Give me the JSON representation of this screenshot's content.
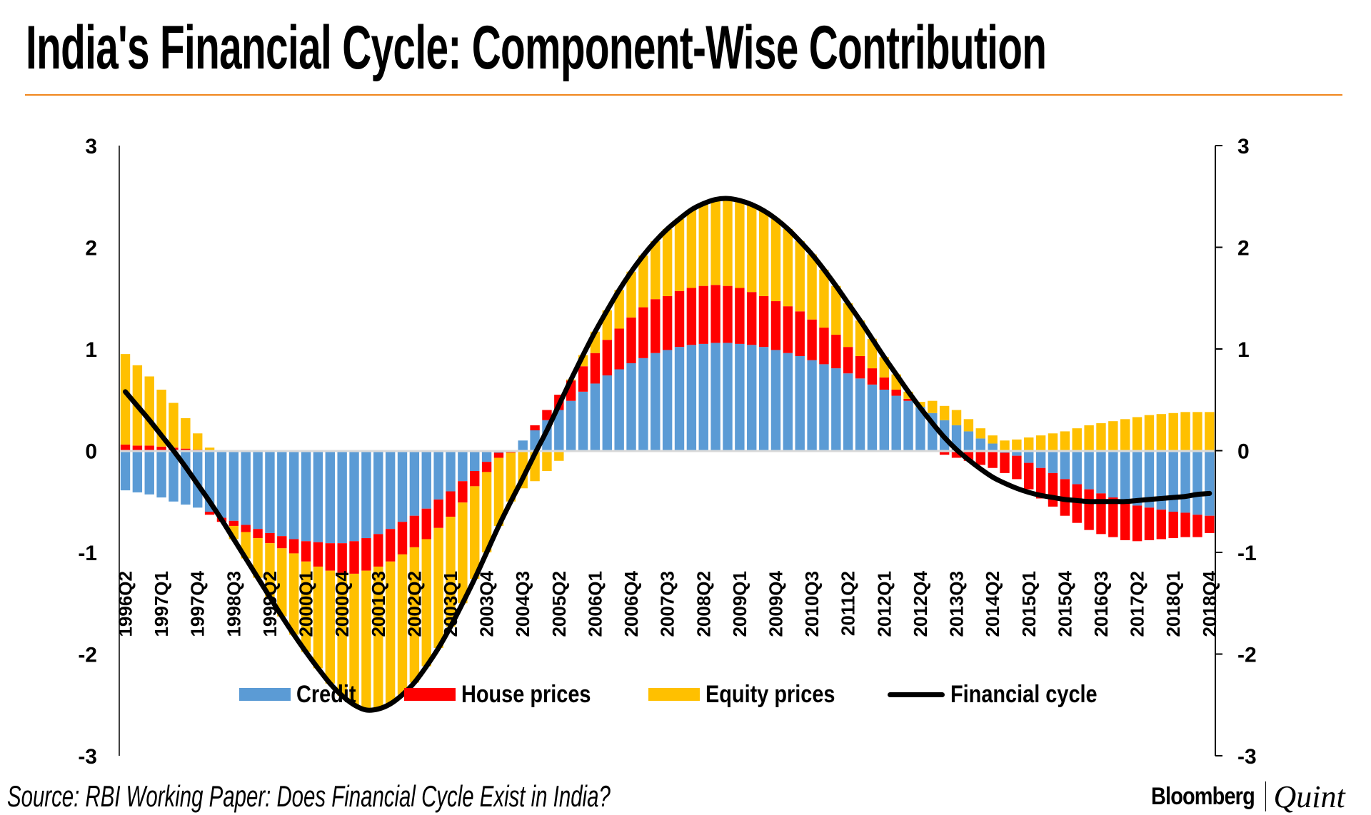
{
  "header": {
    "title": "India's Financial Cycle: Component-Wise Contribution"
  },
  "footer": {
    "source": "Source: RBI Working Paper: Does Financial Cycle Exist in India?",
    "logo_left": "Bloomberg",
    "logo_right": "Quint"
  },
  "chart_data": {
    "type": "bar",
    "stacked": true,
    "title": "India's Financial Cycle: Component-Wise Contribution",
    "xlabel": "",
    "ylabel": "",
    "ylim": [
      -3,
      3
    ],
    "y_ticks": [
      "3",
      "2",
      "1",
      "0",
      "-1",
      "-2",
      "-3"
    ],
    "y2_ticks": [
      "3",
      "2",
      "1",
      "0",
      "-1",
      "-2",
      "-3"
    ],
    "grid": false,
    "legend_position": "bottom",
    "x_tick_every": 3,
    "x_tick_labels": [
      "1996Q2",
      "1997Q1",
      "1997Q4",
      "1998Q3",
      "1999Q2",
      "2000Q1",
      "2000Q4",
      "2001Q3",
      "2002Q2",
      "2003Q1",
      "2003Q4",
      "2004Q3",
      "2005Q2",
      "2006Q1",
      "2006Q4",
      "2007Q3",
      "2008Q2",
      "2009Q1",
      "2009Q4",
      "2010Q3",
      "2011Q2",
      "2012Q1",
      "2012Q4",
      "2013Q3",
      "2014Q2",
      "2015Q1",
      "2015Q4",
      "2016Q3",
      "2017Q2",
      "2018Q1",
      "2018Q4"
    ],
    "series": [
      {
        "name": "Credit",
        "type": "bar",
        "color": "#5b9bd5",
        "values": [
          -0.39,
          -0.41,
          -0.43,
          -0.46,
          -0.5,
          -0.53,
          -0.56,
          -0.6,
          -0.66,
          -0.69,
          -0.73,
          -0.77,
          -0.81,
          -0.84,
          -0.87,
          -0.89,
          -0.9,
          -0.91,
          -0.91,
          -0.89,
          -0.86,
          -0.82,
          -0.77,
          -0.7,
          -0.64,
          -0.57,
          -0.48,
          -0.4,
          -0.3,
          -0.2,
          -0.11,
          -0.02,
          0.0,
          0.1,
          0.2,
          0.3,
          0.4,
          0.49,
          0.58,
          0.66,
          0.74,
          0.8,
          0.86,
          0.91,
          0.96,
          0.99,
          1.02,
          1.04,
          1.05,
          1.06,
          1.06,
          1.05,
          1.04,
          1.02,
          0.99,
          0.96,
          0.93,
          0.89,
          0.85,
          0.81,
          0.76,
          0.71,
          0.65,
          0.6,
          0.54,
          0.49,
          0.43,
          0.37,
          0.3,
          0.25,
          0.19,
          0.12,
          0.07,
          -0.02,
          -0.05,
          -0.12,
          -0.17,
          -0.22,
          -0.28,
          -0.33,
          -0.38,
          -0.42,
          -0.46,
          -0.51,
          -0.54,
          -0.56,
          -0.58,
          -0.6,
          -0.61,
          -0.63,
          -0.64
        ]
      },
      {
        "name": "House prices",
        "type": "bar",
        "color": "#ff0000",
        "values": [
          0.06,
          0.05,
          0.05,
          0.04,
          0.03,
          0.02,
          0.01,
          -0.03,
          -0.04,
          -0.05,
          -0.07,
          -0.09,
          -0.1,
          -0.12,
          -0.14,
          -0.2,
          -0.24,
          -0.27,
          -0.29,
          -0.32,
          -0.32,
          -0.32,
          -0.32,
          -0.32,
          -0.31,
          -0.3,
          -0.28,
          -0.25,
          -0.21,
          -0.15,
          -0.1,
          -0.05,
          -0.02,
          0.0,
          0.05,
          0.1,
          0.15,
          0.2,
          0.25,
          0.3,
          0.35,
          0.4,
          0.45,
          0.5,
          0.53,
          0.53,
          0.55,
          0.56,
          0.57,
          0.57,
          0.56,
          0.55,
          0.52,
          0.5,
          0.48,
          0.46,
          0.44,
          0.4,
          0.36,
          0.33,
          0.26,
          0.22,
          0.16,
          0.12,
          0.06,
          0.02,
          0.0,
          -0.01,
          -0.04,
          -0.07,
          -0.1,
          -0.14,
          -0.17,
          -0.2,
          -0.23,
          -0.26,
          -0.3,
          -0.33,
          -0.36,
          -0.38,
          -0.4,
          -0.4,
          -0.39,
          -0.37,
          -0.35,
          -0.32,
          -0.29,
          -0.26,
          -0.24,
          -0.22,
          -0.17
        ]
      },
      {
        "name": "Equity prices",
        "type": "bar",
        "color": "#ffc000",
        "values": [
          0.89,
          0.79,
          0.68,
          0.56,
          0.44,
          0.3,
          0.16,
          0.03,
          0.0,
          -0.13,
          -0.26,
          -0.39,
          -0.53,
          -0.67,
          -0.8,
          -0.89,
          -1.0,
          -1.11,
          -1.21,
          -1.29,
          -1.37,
          -1.4,
          -1.4,
          -1.38,
          -1.33,
          -1.25,
          -1.18,
          -1.08,
          -0.99,
          -0.91,
          -0.79,
          -0.67,
          -0.48,
          -0.37,
          -0.3,
          -0.2,
          -0.1,
          0.01,
          0.11,
          0.21,
          0.29,
          0.38,
          0.45,
          0.51,
          0.57,
          0.66,
          0.71,
          0.77,
          0.81,
          0.84,
          0.86,
          0.86,
          0.86,
          0.84,
          0.81,
          0.76,
          0.69,
          0.64,
          0.57,
          0.48,
          0.43,
          0.35,
          0.29,
          0.2,
          0.15,
          0.07,
          0.05,
          0.12,
          0.14,
          0.15,
          0.12,
          0.1,
          0.08,
          0.1,
          0.11,
          0.13,
          0.15,
          0.17,
          0.19,
          0.22,
          0.25,
          0.27,
          0.29,
          0.31,
          0.33,
          0.35,
          0.36,
          0.37,
          0.38,
          0.38,
          0.38
        ]
      },
      {
        "name": "Financial cycle",
        "type": "line",
        "color": "#000000",
        "values": [
          0.58,
          0.44,
          0.3,
          0.15,
          0.0,
          -0.16,
          -0.33,
          -0.5,
          -0.68,
          -0.87,
          -1.06,
          -1.25,
          -1.44,
          -1.63,
          -1.81,
          -1.98,
          -2.14,
          -2.29,
          -2.41,
          -2.5,
          -2.55,
          -2.54,
          -2.49,
          -2.4,
          -2.28,
          -2.12,
          -1.94,
          -1.73,
          -1.5,
          -1.26,
          -1.0,
          -0.74,
          -0.5,
          -0.27,
          -0.03,
          0.2,
          0.45,
          0.7,
          0.94,
          1.17,
          1.38,
          1.58,
          1.76,
          1.92,
          2.06,
          2.18,
          2.28,
          2.37,
          2.43,
          2.47,
          2.48,
          2.46,
          2.42,
          2.36,
          2.28,
          2.18,
          2.06,
          1.93,
          1.78,
          1.62,
          1.45,
          1.28,
          1.1,
          0.92,
          0.75,
          0.58,
          0.42,
          0.27,
          0.13,
          0.01,
          -0.09,
          -0.18,
          -0.26,
          -0.32,
          -0.37,
          -0.41,
          -0.44,
          -0.46,
          -0.48,
          -0.49,
          -0.5,
          -0.5,
          -0.5,
          -0.5,
          -0.49,
          -0.48,
          -0.47,
          -0.46,
          -0.45,
          -0.43,
          -0.42
        ]
      }
    ]
  }
}
